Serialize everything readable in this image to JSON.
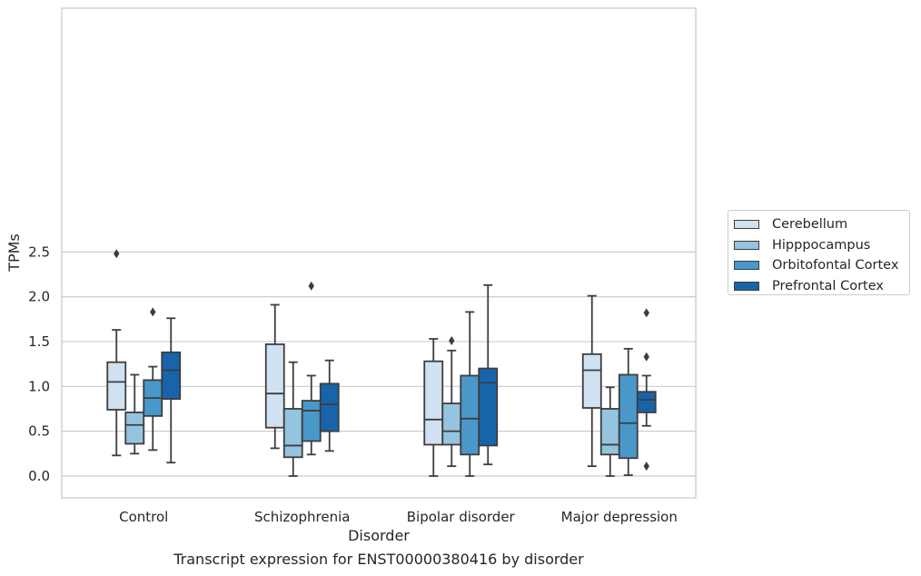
{
  "caption": "Transcript expression for ENST00000380416 by disorder",
  "chart_data": {
    "type": "boxplot",
    "title": "",
    "xlabel": "Disorder",
    "ylabel": "TPMs",
    "ylim": [
      -0.12,
      2.62
    ],
    "yticks": [
      0.0,
      0.5,
      1.0,
      1.5,
      2.0,
      2.5
    ],
    "ytick_labels": [
      "0.0",
      "0.5",
      "1.0",
      "1.5",
      "2.0",
      "2.5"
    ],
    "grid": "horizontal",
    "legend_position": "outside-right",
    "categories": [
      "Control",
      "Schizophrenia",
      "Bipolar disorder",
      "Major depression"
    ],
    "series": [
      {
        "name": "Cerebellum",
        "color": "#d0e1f2",
        "boxes": [
          {
            "whislo": 0.23,
            "q1": 0.74,
            "med": 1.05,
            "q3": 1.27,
            "whishi": 1.63,
            "fliers": [
              2.48
            ]
          },
          {
            "whislo": 0.31,
            "q1": 0.54,
            "med": 0.92,
            "q3": 1.47,
            "whishi": 1.91,
            "fliers": []
          },
          {
            "whislo": 0.0,
            "q1": 0.35,
            "med": 0.63,
            "q3": 1.28,
            "whishi": 1.53,
            "fliers": []
          },
          {
            "whislo": 0.11,
            "q1": 0.76,
            "med": 1.18,
            "q3": 1.36,
            "whishi": 2.01,
            "fliers": []
          }
        ]
      },
      {
        "name": "Hipppocampus",
        "color": "#94c4df",
        "boxes": [
          {
            "whislo": 0.25,
            "q1": 0.36,
            "med": 0.57,
            "q3": 0.71,
            "whishi": 1.13,
            "fliers": []
          },
          {
            "whislo": 0.0,
            "q1": 0.21,
            "med": 0.34,
            "q3": 0.75,
            "whishi": 1.27,
            "fliers": []
          },
          {
            "whislo": 0.11,
            "q1": 0.35,
            "med": 0.5,
            "q3": 0.81,
            "whishi": 1.4,
            "fliers": [
              1.51
            ]
          },
          {
            "whislo": 0.0,
            "q1": 0.24,
            "med": 0.35,
            "q3": 0.75,
            "whishi": 0.99,
            "fliers": []
          }
        ]
      },
      {
        "name": "Orbitofontal Cortex",
        "color": "#4a98c9",
        "boxes": [
          {
            "whislo": 0.29,
            "q1": 0.67,
            "med": 0.87,
            "q3": 1.07,
            "whishi": 1.22,
            "fliers": [
              1.83
            ]
          },
          {
            "whislo": 0.24,
            "q1": 0.39,
            "med": 0.73,
            "q3": 0.84,
            "whishi": 1.12,
            "fliers": [
              2.12
            ]
          },
          {
            "whislo": 0.0,
            "q1": 0.24,
            "med": 0.64,
            "q3": 1.12,
            "whishi": 1.83,
            "fliers": []
          },
          {
            "whislo": 0.01,
            "q1": 0.2,
            "med": 0.59,
            "q3": 1.13,
            "whishi": 1.42,
            "fliers": []
          }
        ]
      },
      {
        "name": "Prefrontal Cortex",
        "color": "#1764ab",
        "boxes": [
          {
            "whislo": 0.15,
            "q1": 0.86,
            "med": 1.18,
            "q3": 1.38,
            "whishi": 1.76,
            "fliers": []
          },
          {
            "whislo": 0.28,
            "q1": 0.5,
            "med": 0.8,
            "q3": 1.03,
            "whishi": 1.29,
            "fliers": []
          },
          {
            "whislo": 0.13,
            "q1": 0.34,
            "med": 1.04,
            "q3": 1.2,
            "whishi": 2.13,
            "fliers": []
          },
          {
            "whislo": 0.56,
            "q1": 0.71,
            "med": 0.85,
            "q3": 0.94,
            "whishi": 1.12,
            "fliers": [
              0.11,
              1.33,
              1.82
            ]
          }
        ]
      }
    ]
  }
}
